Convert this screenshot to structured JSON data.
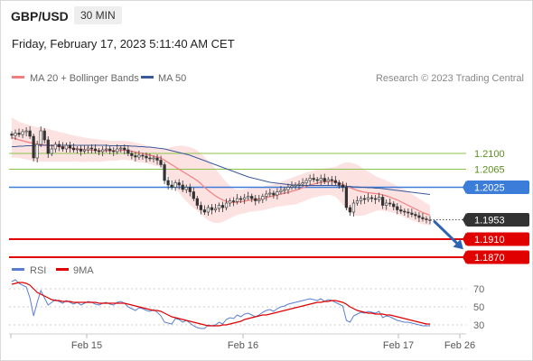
{
  "header": {
    "pair": "GBP/USD",
    "timeframe": "30 MIN",
    "timestamp": "Friday, February 17, 2023 5:11:40 AM CET"
  },
  "legend": {
    "ma20_label": "MA 20 + Bollinger Bands",
    "ma50_label": "MA 50",
    "copyright": "Research © 2023 Trading Central",
    "rsi_label": "RSI",
    "ma9_label": "9MA"
  },
  "colors": {
    "ma20": "#f08080",
    "band_fill": "#fde2e2",
    "ma50": "#3a5a9a",
    "support": "#e00000",
    "resistance": "#8bc34a",
    "pivot": "#3b7dd8",
    "last_price": "#333333",
    "arrow": "#2e64b4",
    "rsi": "#5b7fd0",
    "rsi_ma": "#e00000"
  },
  "chart_data": [
    {
      "type": "candlestick",
      "x_labels": [
        "Feb 15",
        "Feb 16",
        "Feb 17",
        "Feb 26"
      ],
      "ylim": [
        1.186,
        1.224
      ],
      "levels": [
        {
          "value": 1.21,
          "label": "1.2100",
          "kind": "resistance"
        },
        {
          "value": 1.2065,
          "label": "1.2065",
          "kind": "resistance"
        },
        {
          "value": 1.2025,
          "label": "1.2025",
          "kind": "pivot"
        },
        {
          "value": 1.1953,
          "label": "1.1953",
          "kind": "last"
        },
        {
          "value": 1.191,
          "label": "1.1910",
          "kind": "support"
        },
        {
          "value": 1.187,
          "label": "1.1870",
          "kind": "support"
        }
      ],
      "close": [
        1.214,
        1.2145,
        1.2142,
        1.2148,
        1.215,
        1.2138,
        1.209,
        1.212,
        1.215,
        1.213,
        1.21,
        1.211,
        1.212,
        1.2115,
        1.211,
        1.2118,
        1.2112,
        1.2108,
        1.211,
        1.2105,
        1.2108,
        1.2112,
        1.211,
        1.2106,
        1.2104,
        1.2108,
        1.211,
        1.2106,
        1.2104,
        1.211,
        1.2112,
        1.2108,
        1.21,
        1.2095,
        1.2092,
        1.2096,
        1.2094,
        1.209,
        1.2088,
        1.209,
        1.2085,
        1.2075,
        1.204,
        1.203,
        1.2025,
        1.2035,
        1.203,
        1.202,
        1.2025,
        1.2015,
        1.2,
        1.1985,
        1.1975,
        1.197,
        1.198,
        1.1975,
        1.1978,
        1.1985,
        1.198,
        1.199,
        1.1995,
        1.1993,
        1.2,
        1.1998,
        1.2002,
        1.2005,
        1.2,
        1.1995,
        1.1998,
        1.2005,
        1.201,
        1.2012,
        1.2008,
        1.2015,
        1.2018,
        1.202,
        1.2025,
        1.2028,
        1.203,
        1.2032,
        1.2035,
        1.204,
        1.2045,
        1.2042,
        1.204,
        1.2045,
        1.2038,
        1.2042,
        1.204,
        1.2035,
        1.203,
        1.2025,
        1.198,
        1.197,
        1.199,
        1.1995,
        1.2,
        1.1998,
        1.2002,
        1.2,
        1.1998,
        1.2003,
        1.1985,
        1.199,
        1.1988,
        1.1982,
        1.1975,
        1.1972,
        1.197,
        1.1968,
        1.1965,
        1.1962,
        1.1958,
        1.1955,
        1.1953,
        1.1953
      ],
      "bb_mid": [
        1.2135,
        1.2133,
        1.213,
        1.2128,
        1.2126,
        1.2124,
        1.2122,
        1.212,
        1.212,
        1.2119,
        1.2118,
        1.2117,
        1.2116,
        1.2115,
        1.2114,
        1.2113,
        1.2112,
        1.2111,
        1.211,
        1.2109,
        1.2108,
        1.2108,
        1.2107,
        1.2107,
        1.2106,
        1.2106,
        1.2106,
        1.2106,
        1.2106,
        1.2106,
        1.2107,
        1.2107,
        1.2106,
        1.2105,
        1.2103,
        1.2101,
        1.21,
        1.2098,
        1.2096,
        1.2094,
        1.2092,
        1.209,
        1.2085,
        1.208,
        1.2075,
        1.207,
        1.2065,
        1.206,
        1.2055,
        1.205,
        1.2045,
        1.204,
        1.2033,
        1.2025,
        1.2018,
        1.2012,
        1.2006,
        1.2001,
        1.1997,
        1.1994,
        1.1992,
        1.1991,
        1.1992,
        1.1993,
        1.1994,
        1.1996,
        1.1997,
        1.1998,
        1.1999,
        1.2,
        1.2002,
        1.2004,
        1.2006,
        1.2008,
        1.201,
        1.2012,
        1.2014,
        1.2016,
        1.2018,
        1.2021,
        1.2024,
        1.2027,
        1.203,
        1.2032,
        1.2034,
        1.2036,
        1.2037,
        1.2038,
        1.2038,
        1.2037,
        1.2035,
        1.2032,
        1.2028,
        1.2024,
        1.2021,
        1.2018,
        1.2016,
        1.2014,
        1.2013,
        1.2012,
        1.2011,
        1.201,
        1.2008,
        1.2006,
        1.2003,
        1.2,
        1.1997,
        1.1993,
        1.1989,
        1.1985,
        1.1981,
        1.1977,
        1.1973,
        1.1969,
        1.1966,
        1.1963
      ],
      "bb_upper": [
        1.218,
        1.2175,
        1.217,
        1.2168,
        1.2165,
        1.2163,
        1.216,
        1.2158,
        1.2158,
        1.2156,
        1.2154,
        1.2152,
        1.215,
        1.2148,
        1.2146,
        1.2144,
        1.2142,
        1.214,
        1.2138,
        1.2137,
        1.2135,
        1.2134,
        1.2133,
        1.2132,
        1.2131,
        1.213,
        1.2129,
        1.2128,
        1.2128,
        1.2128,
        1.2128,
        1.2128,
        1.2127,
        1.2126,
        1.2124,
        1.2122,
        1.212,
        1.2118,
        1.2116,
        1.2114,
        1.2112,
        1.211,
        1.211,
        1.2112,
        1.2114,
        1.2116,
        1.2117,
        1.2117,
        1.2116,
        1.2114,
        1.2111,
        1.2107,
        1.21,
        1.2092,
        1.2084,
        1.2076,
        1.2066,
        1.2056,
        1.2046,
        1.2036,
        1.2028,
        1.2022,
        1.202,
        1.202,
        1.2021,
        1.2022,
        1.2023,
        1.2024,
        1.2025,
        1.2026,
        1.2028,
        1.203,
        1.2032,
        1.2034,
        1.2037,
        1.204,
        1.2043,
        1.2046,
        1.2049,
        1.2052,
        1.2055,
        1.2058,
        1.206,
        1.2062,
        1.2064,
        1.2066,
        1.2067,
        1.2068,
        1.2069,
        1.207,
        1.2074,
        1.2078,
        1.208,
        1.208,
        1.2078,
        1.2075,
        1.207,
        1.2065,
        1.206,
        1.2055,
        1.205,
        1.2046,
        1.2043,
        1.204,
        1.2036,
        1.2032,
        1.2028,
        1.2024,
        1.202,
        1.2015,
        1.201,
        1.2005,
        1.2,
        1.1995,
        1.199,
        1.1985
      ],
      "bb_lower": [
        1.209,
        1.2091,
        1.209,
        1.2088,
        1.2087,
        1.2085,
        1.2084,
        1.2082,
        1.2082,
        1.2082,
        1.2082,
        1.2082,
        1.2082,
        1.2082,
        1.2082,
        1.2082,
        1.2082,
        1.2082,
        1.2082,
        1.2081,
        1.2081,
        1.2082,
        1.2081,
        1.2082,
        1.2081,
        1.2082,
        1.2083,
        1.2084,
        1.2084,
        1.2084,
        1.2086,
        1.2086,
        1.2085,
        1.2084,
        1.2082,
        1.208,
        1.208,
        1.2078,
        1.2076,
        1.2074,
        1.2072,
        1.207,
        1.206,
        1.2048,
        1.2036,
        1.2024,
        1.2013,
        1.2003,
        1.1994,
        1.1986,
        1.1979,
        1.1973,
        1.1966,
        1.1958,
        1.1952,
        1.1948,
        1.1946,
        1.1946,
        1.1948,
        1.1952,
        1.1956,
        1.196,
        1.1964,
        1.1966,
        1.1967,
        1.197,
        1.1971,
        1.1972,
        1.1973,
        1.1974,
        1.1976,
        1.1978,
        1.198,
        1.1982,
        1.1983,
        1.1984,
        1.1985,
        1.1986,
        1.1987,
        1.199,
        1.1993,
        1.1996,
        1.2,
        1.2002,
        1.2004,
        1.2006,
        1.2007,
        1.2008,
        1.2007,
        1.2004,
        1.1996,
        1.1986,
        1.1976,
        1.1968,
        1.1964,
        1.1961,
        1.1962,
        1.1963,
        1.1966,
        1.1969,
        1.1972,
        1.1974,
        1.1973,
        1.1972,
        1.197,
        1.1968,
        1.1966,
        1.1962,
        1.1958,
        1.1955,
        1.1952,
        1.1949,
        1.1946,
        1.1943,
        1.1942,
        1.1941
      ],
      "ma50": [
        1.2115,
        1.2115,
        1.2116,
        1.2116,
        1.2117,
        1.2117,
        1.2117,
        1.2118,
        1.2118,
        1.2118,
        1.2118,
        1.2118,
        1.2118,
        1.2118,
        1.2118,
        1.2118,
        1.2118,
        1.2118,
        1.2118,
        1.2118,
        1.2118,
        1.2118,
        1.2118,
        1.2118,
        1.2118,
        1.2118,
        1.2118,
        1.2117,
        1.2117,
        1.2117,
        1.2117,
        1.2117,
        1.2117,
        1.2116,
        1.2116,
        1.2115,
        1.2115,
        1.2114,
        1.2114,
        1.2113,
        1.2112,
        1.2111,
        1.211,
        1.2108,
        1.2106,
        1.2104,
        1.2102,
        1.21,
        1.2098,
        1.2096,
        1.2093,
        1.209,
        1.2087,
        1.2084,
        1.2081,
        1.2078,
        1.2075,
        1.2072,
        1.2069,
        1.2066,
        1.2063,
        1.206,
        1.2057,
        1.2054,
        1.2051,
        1.2048,
        1.2046,
        1.2044,
        1.2042,
        1.204,
        1.2038,
        1.2036,
        1.2035,
        1.2034,
        1.2033,
        1.2032,
        1.2031,
        1.203,
        1.203,
        1.2029,
        1.2029,
        1.2029,
        1.2029,
        1.2029,
        1.2029,
        1.2029,
        1.2029,
        1.2029,
        1.2029,
        1.2029,
        1.2028,
        1.2028,
        1.2027,
        1.2027,
        1.2026,
        1.2026,
        1.2025,
        1.2025,
        1.2024,
        1.2024,
        1.2023,
        1.2023,
        1.2022,
        1.2021,
        1.202,
        1.2019,
        1.2018,
        1.2017,
        1.2016,
        1.2015,
        1.2014,
        1.2013,
        1.2012,
        1.2011,
        1.201,
        1.2009
      ],
      "forecast_arrow": {
        "from": 1.1953,
        "to": 1.1885
      }
    },
    {
      "type": "line",
      "ylim": [
        20,
        85
      ],
      "y_ticks": [
        70,
        50,
        30
      ],
      "series": [
        {
          "name": "RSI",
          "values": [
            78,
            80,
            76,
            74,
            72,
            60,
            40,
            55,
            68,
            60,
            52,
            55,
            58,
            56,
            54,
            57,
            55,
            53,
            55,
            52,
            54,
            56,
            55,
            53,
            52,
            54,
            55,
            53,
            52,
            55,
            56,
            54,
            50,
            48,
            46,
            49,
            48,
            46,
            45,
            47,
            44,
            40,
            33,
            32,
            31,
            37,
            36,
            33,
            35,
            32,
            29,
            27,
            26,
            26,
            30,
            29,
            30,
            33,
            31,
            36,
            38,
            37,
            41,
            39,
            42,
            43,
            41,
            39,
            41,
            44,
            46,
            47,
            45,
            48,
            50,
            51,
            53,
            54,
            55,
            56,
            57,
            58,
            59,
            58,
            57,
            59,
            56,
            58,
            57,
            55,
            53,
            51,
            35,
            33,
            40,
            42,
            44,
            43,
            45,
            44,
            43,
            45,
            38,
            40,
            39,
            37,
            35,
            34,
            33,
            33,
            32,
            31,
            30,
            29,
            29,
            29
          ]
        },
        {
          "name": "9MA",
          "values": [
            75,
            76,
            77,
            77,
            76,
            74,
            70,
            66,
            64,
            62,
            60,
            58,
            57,
            57,
            56,
            56,
            56,
            55,
            55,
            55,
            55,
            55,
            55,
            55,
            54,
            54,
            54,
            54,
            54,
            54,
            54,
            54,
            53,
            52,
            51,
            50,
            49,
            48,
            47,
            46,
            46,
            45,
            43,
            41,
            39,
            38,
            37,
            36,
            35,
            34,
            33,
            32,
            31,
            30,
            29,
            29,
            29,
            29,
            30,
            30,
            31,
            32,
            33,
            34,
            36,
            37,
            38,
            39,
            40,
            41,
            41,
            42,
            43,
            44,
            45,
            46,
            47,
            48,
            49,
            50,
            51,
            52,
            53,
            54,
            55,
            55,
            56,
            56,
            57,
            57,
            56,
            55,
            53,
            50,
            48,
            46,
            45,
            44,
            43,
            43,
            42,
            42,
            42,
            41,
            41,
            40,
            39,
            38,
            37,
            36,
            35,
            34,
            33,
            32,
            31,
            31
          ]
        }
      ]
    }
  ]
}
